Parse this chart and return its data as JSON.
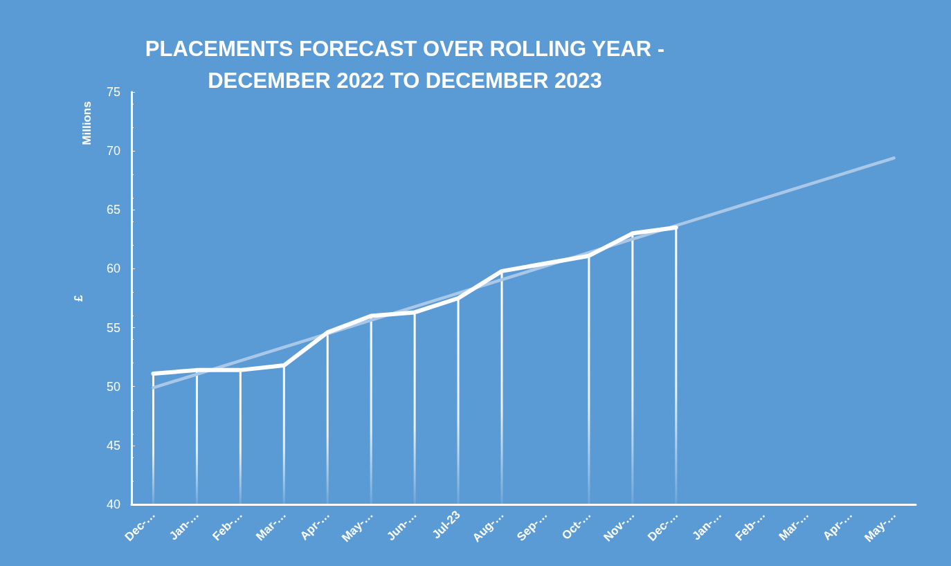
{
  "chart_data": {
    "type": "line",
    "title": "PLACEMENTS FORECAST OVER ROLLING YEAR -\nDECEMBER 2022 TO DECEMBER 2023",
    "ylabel": "£",
    "annotations": [
      "Millions"
    ],
    "categories": [
      "Dec-…",
      "Jan-…",
      "Feb-…",
      "Mar-…",
      "Apr-…",
      "May-…",
      "Jun-…",
      "Jul-23",
      "Aug-…",
      "Sep-…",
      "Oct-…",
      "Nov-…",
      "Dec-…",
      "Jan-…",
      "Feb-…",
      "Mar-…",
      "Apr-…",
      "May-…"
    ],
    "series": [
      {
        "color": "#ffffff",
        "values": [
          51.1,
          51.4,
          51.4,
          51.8,
          54.6,
          56.0,
          56.3,
          57.5,
          59.8,
          null,
          61.1,
          63.0,
          63.5,
          null,
          null,
          null,
          null,
          null
        ]
      },
      {
        "type": "bar",
        "color": "#ffffff",
        "values": [
          51.1,
          51.4,
          51.4,
          51.8,
          54.6,
          56.0,
          56.3,
          57.5,
          59.8,
          null,
          61.1,
          63.0,
          63.5,
          null,
          null,
          null,
          null,
          null
        ]
      },
      {
        "color": "#a9c8e8",
        "values": [
          49.9,
          null,
          null,
          null,
          null,
          null,
          null,
          null,
          null,
          null,
          null,
          null,
          null,
          null,
          null,
          null,
          null,
          69.4
        ]
      }
    ],
    "ylim": [
      40,
      75
    ],
    "yticks": [
      40,
      45,
      50,
      55,
      60,
      65,
      70,
      75
    ],
    "grid": false,
    "marker": "none",
    "line_style": "solid"
  }
}
